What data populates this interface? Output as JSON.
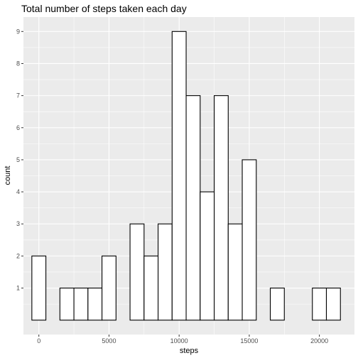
{
  "chart_data": {
    "type": "bar",
    "title": "Total number of steps taken each day",
    "xlabel": "steps",
    "ylabel": "count",
    "x_ticks": [
      0,
      5000,
      10000,
      15000,
      20000
    ],
    "x_tick_labels": [
      "0",
      "5000",
      "10000",
      "15000",
      "20000"
    ],
    "y_ticks": [
      1,
      2,
      3,
      4,
      5,
      6,
      7,
      8,
      9
    ],
    "y_tick_labels": [
      "1",
      "2",
      "3",
      "4",
      "5",
      "6",
      "7",
      "8",
      "9"
    ],
    "xlim": [
      -1100,
      22500
    ],
    "ylim": [
      -0.45,
      9.45
    ],
    "bin_width": 1000,
    "bins": [
      {
        "x": 0,
        "count": 2
      },
      {
        "x": 1000,
        "count": 0
      },
      {
        "x": 2000,
        "count": 1
      },
      {
        "x": 3000,
        "count": 1
      },
      {
        "x": 4000,
        "count": 1
      },
      {
        "x": 5000,
        "count": 2
      },
      {
        "x": 6000,
        "count": 0
      },
      {
        "x": 7000,
        "count": 3
      },
      {
        "x": 8000,
        "count": 2
      },
      {
        "x": 9000,
        "count": 3
      },
      {
        "x": 10000,
        "count": 9
      },
      {
        "x": 11000,
        "count": 7
      },
      {
        "x": 12000,
        "count": 4
      },
      {
        "x": 13000,
        "count": 7
      },
      {
        "x": 14000,
        "count": 3
      },
      {
        "x": 15000,
        "count": 5
      },
      {
        "x": 16000,
        "count": 0
      },
      {
        "x": 17000,
        "count": 1
      },
      {
        "x": 18000,
        "count": 0
      },
      {
        "x": 19000,
        "count": 0
      },
      {
        "x": 20000,
        "count": 1
      },
      {
        "x": 21000,
        "count": 1
      }
    ],
    "grid": true,
    "colors": {
      "panel_background": "#ebebeb",
      "grid_line": "#ffffff",
      "bar_fill": "#ffffff",
      "bar_outline": "#000000"
    }
  }
}
